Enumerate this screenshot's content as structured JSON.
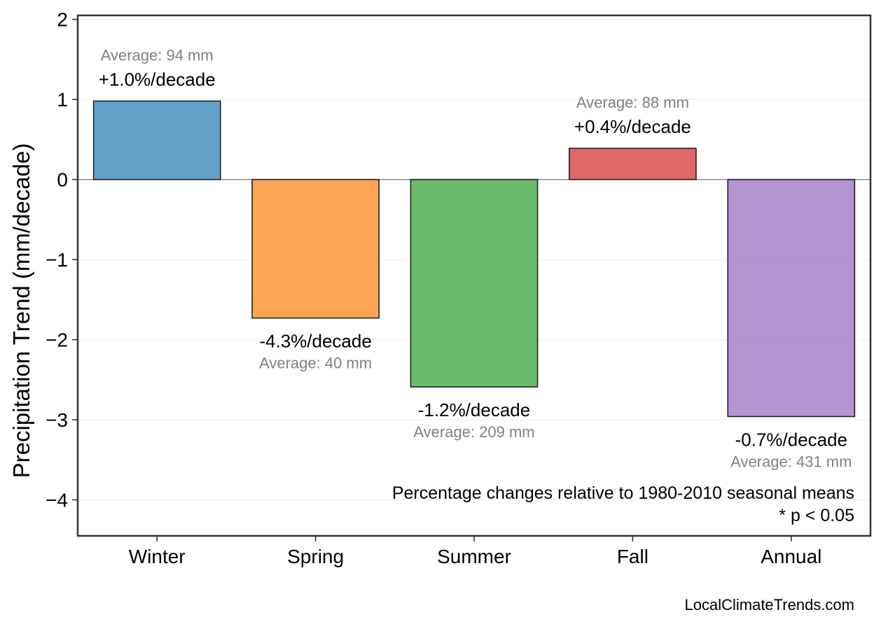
{
  "chart_data": {
    "type": "bar",
    "categories": [
      "Winter",
      "Spring",
      "Summer",
      "Fall",
      "Annual"
    ],
    "values": [
      0.98,
      -1.73,
      -2.59,
      0.39,
      -2.96
    ],
    "colors": [
      "#1f77b4",
      "#ff7f0e",
      "#2ca02c",
      "#d62728",
      "#9467bd"
    ],
    "percent_labels": [
      "+1.0%/decade",
      "-4.3%/decade",
      "-1.2%/decade",
      "+0.4%/decade",
      "-0.7%/decade"
    ],
    "average_labels": [
      "Average: 94 mm",
      "Average: 40 mm",
      "Average: 209 mm",
      "Average: 88 mm",
      "Average: 431 mm"
    ],
    "title": "",
    "xlabel": "",
    "ylabel": "Precipitation Trend (mm/decade)",
    "ylim": [
      -4.45,
      2.05
    ],
    "yticks": [
      2,
      1,
      0,
      -1,
      -2,
      -3,
      -4
    ],
    "ytick_labels": [
      "2",
      "1",
      "0",
      "−1",
      "−2",
      "−3",
      "−4"
    ],
    "grid": "horizontal, faint",
    "zero_line": true
  },
  "annotations": {
    "note_line1": "Percentage changes relative to 1980-2010 seasonal means",
    "note_line2": "* p < 0.05"
  },
  "credit": "LocalClimateTrends.com"
}
